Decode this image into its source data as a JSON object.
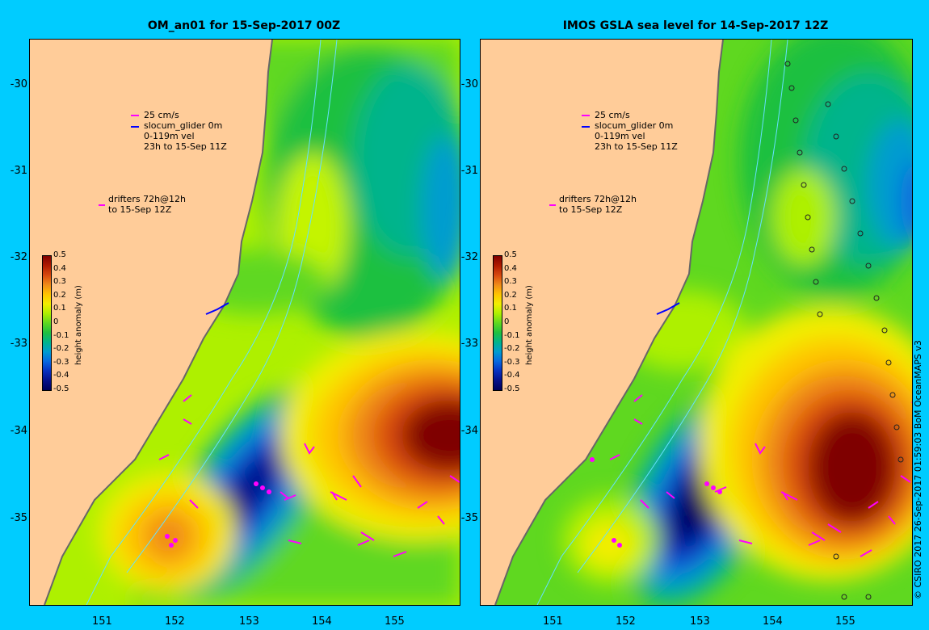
{
  "panels": [
    {
      "title": "OM_an01 for 15-Sep-2017 00Z"
    },
    {
      "title": "IMOS GSLA sea level  for 14-Sep-2017 12Z"
    }
  ],
  "axes": {
    "lat_ticks": [
      "-30",
      "-31",
      "-32",
      "-33",
      "-34",
      "-35"
    ],
    "lon_ticks": [
      "151",
      "152",
      "153",
      "154",
      "155"
    ]
  },
  "legend": {
    "vector_scale": "25 cm/s",
    "glider_name": "slocum_glider 0m",
    "glider_depth": "0-119m vel",
    "glider_time": "23h to 15-Sep 11Z",
    "drifters": "drifters 72h@12h",
    "drifters_time": "to 15-Sep 12Z"
  },
  "colorbar": {
    "title": "height anomaly (m)",
    "ticks": [
      "0.5",
      "0.4",
      "0.3",
      "0.2",
      "0.1",
      "0",
      "-0.1",
      "-0.2",
      "-0.3",
      "-0.4",
      "-0.5"
    ],
    "colors": [
      "#7f0000",
      "#b01a00",
      "#d8480e",
      "#f08a18",
      "#ffc400",
      "#f2ee00",
      "#aef000",
      "#5fd820",
      "#1fc040",
      "#00b48c",
      "#009cd0",
      "#0868e0",
      "#0830c0",
      "#06108a",
      "#00005a"
    ]
  },
  "credit": "© CSIRO 2017   26-Sep-2017 01:59:03 BoM OceanMAPS v3",
  "colors": {
    "background": "#00ccff",
    "land": "#ffcc99",
    "coast": "#999999",
    "vector": "#ff00ff",
    "glider_track": "#0000ff"
  }
}
